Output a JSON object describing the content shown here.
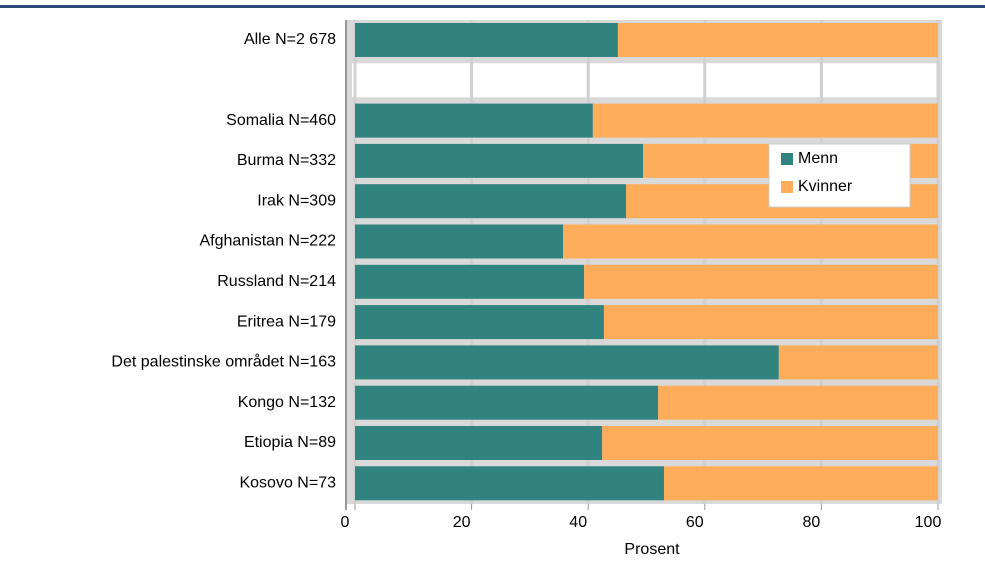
{
  "chart_data": {
    "type": "stacked-bar-horizontal",
    "x_label": "Prosent",
    "categories": [
      "Alle N=2 678",
      null,
      "Somalia N=460",
      "Burma N=332",
      "Irak N=309",
      "Afghanistan N=222",
      "Russland N=214",
      "Eritrea N=179",
      "Det palestinske området N=163",
      "Kongo N=132",
      "Etiopia N=89",
      "Kosovo N=73"
    ],
    "series": [
      {
        "name": "Menn",
        "color": "#31837f",
        "values": [
          45.1,
          null,
          40.8,
          49.4,
          46.5,
          35.7,
          39.3,
          42.7,
          72.7,
          52.0,
          42.4,
          53.0
        ]
      },
      {
        "name": "Kvinner",
        "color": "#fdac5a",
        "values": [
          54.9,
          null,
          59.2,
          50.6,
          53.5,
          64.3,
          60.7,
          57.3,
          27.3,
          48.0,
          57.6,
          47.0
        ]
      }
    ],
    "xlim": [
      0,
      100
    ],
    "xticks": [
      0,
      20,
      40,
      60,
      80,
      100
    ],
    "grid": true,
    "legend": "upper right"
  }
}
